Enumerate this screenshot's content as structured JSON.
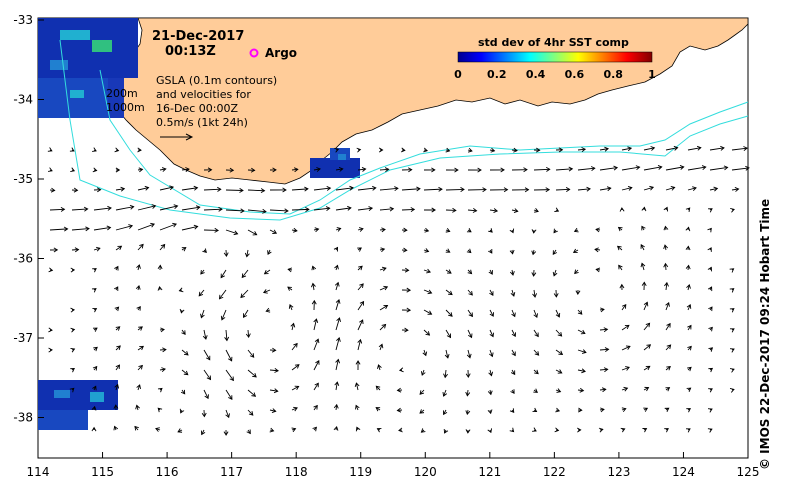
{
  "map": {
    "date": "21-Dec-2017",
    "time": "00:13Z",
    "argo_label": "Argo",
    "gsla_lines": [
      "GSLA (0.1m contours)",
      "and velocities for",
      "16-Dec 00:00Z",
      "0.5m/s (1kt 24h)"
    ],
    "isobath_labels": [
      "200m",
      "1000m"
    ],
    "credit": "© IMOS 22-Dec-2017 09:24 Hobart Time",
    "colorbar": {
      "title": "std dev of 4hr SST comp",
      "ticks": [
        "0",
        "0.2",
        "0.4",
        "0.6",
        "0.8",
        "1"
      ]
    },
    "axes": {
      "x_ticks": [
        "114",
        "115",
        "116",
        "117",
        "118",
        "119",
        "120",
        "121",
        "122",
        "123",
        "124",
        "125"
      ],
      "y_ticks": [
        "-33",
        "-34",
        "-35",
        "-36",
        "-37",
        "-38"
      ]
    },
    "colors": {
      "land": "#ffcc99",
      "isobath": "#33dddd",
      "sst_low": "#1030b0",
      "argo": "#ff00ff"
    }
  }
}
